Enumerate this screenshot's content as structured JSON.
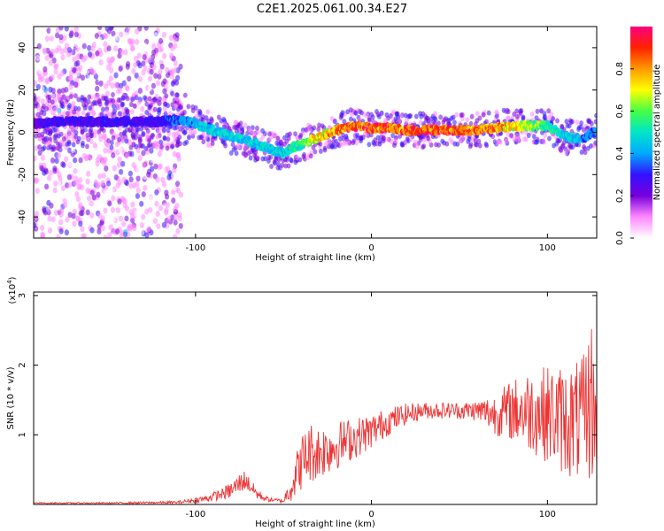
{
  "title": "C2E1.2025.061.00.34.E27",
  "chart_data": [
    {
      "type": "heatmap",
      "xlabel": "Height of straight line (km)",
      "ylabel": "Frequency (Hz)",
      "xlim": [
        -192,
        128
      ],
      "ylim": [
        -50,
        50
      ],
      "x_ticks": [
        -100,
        0,
        100
      ],
      "y_ticks": [
        -40,
        -20,
        0,
        20,
        40
      ],
      "colorbar": {
        "label": "Normalized spectral amplitude",
        "range": [
          0,
          1
        ],
        "ticks": [
          "0.0",
          "0.2",
          "0.4",
          "0.6",
          "0.8"
        ],
        "ramp": [
          "#ffffff",
          "#ff88ff",
          "#7700dd",
          "#3311ff",
          "#00aaff",
          "#00e5c8",
          "#44ff44",
          "#ffff00",
          "#ff9900",
          "#ff2200",
          "#ff0080"
        ]
      },
      "ridge": {
        "x": [
          -192,
          -180,
          -160,
          -140,
          -120,
          -110,
          -100,
          -90,
          -80,
          -70,
          -60,
          -55,
          -50,
          -45,
          -40,
          -35,
          -30,
          -20,
          -10,
          0,
          10,
          20,
          40,
          60,
          70,
          80,
          90,
          100,
          110,
          120,
          128
        ],
        "freq": [
          4,
          5,
          5,
          5,
          5,
          6,
          4,
          1,
          -2,
          -4,
          -7,
          -9,
          -10,
          -7,
          -6,
          -4,
          -2,
          1,
          3,
          2,
          2,
          1,
          1,
          1,
          2,
          3,
          3,
          3,
          -2,
          -3,
          1
        ],
        "amplitude": [
          0.25,
          0.3,
          0.3,
          0.3,
          0.3,
          0.4,
          0.45,
          0.5,
          0.5,
          0.5,
          0.5,
          0.5,
          0.5,
          0.55,
          0.6,
          0.7,
          0.8,
          0.9,
          0.95,
          0.95,
          0.95,
          0.95,
          0.95,
          0.95,
          0.9,
          0.8,
          0.7,
          0.6,
          0.5,
          0.45,
          0.4
        ]
      }
    },
    {
      "type": "line",
      "xlabel": "Height of straight line (km)",
      "ylabel": "SNR (10 * v/v)",
      "y_multiplier": "(x10^4)",
      "y_multiplier_base": "(x10",
      "y_multiplier_exp": "4",
      "y_multiplier_close": ")",
      "xlim": [
        -192,
        128
      ],
      "ylim": [
        0,
        3.05
      ],
      "x_ticks": [
        -100,
        0,
        100
      ],
      "y_ticks": [
        1,
        2,
        3
      ],
      "series": [
        {
          "color": "#ee3333",
          "x": [
            -192,
            -150,
            -110,
            -95,
            -85,
            -80,
            -75,
            -72,
            -70,
            -65,
            -60,
            -55,
            -50,
            -45,
            -40,
            -35,
            -30,
            -20,
            -10,
            0,
            10,
            20,
            30,
            40,
            50,
            60,
            70,
            80,
            90,
            100,
            110,
            120,
            125,
            128
          ],
          "value": [
            0.02,
            0.02,
            0.03,
            0.08,
            0.15,
            0.2,
            0.3,
            0.35,
            0.3,
            0.15,
            0.08,
            0.06,
            0.05,
            0.3,
            0.6,
            0.75,
            0.75,
            0.85,
            0.95,
            1.05,
            1.2,
            1.3,
            1.35,
            1.35,
            1.35,
            1.35,
            1.3,
            1.35,
            1.35,
            1.3,
            1.2,
            1.2,
            1.5,
            1.1
          ],
          "spread": [
            0.01,
            0.01,
            0.02,
            0.05,
            0.08,
            0.12,
            0.15,
            0.15,
            0.12,
            0.08,
            0.04,
            0.03,
            0.03,
            0.25,
            0.4,
            0.45,
            0.4,
            0.35,
            0.3,
            0.25,
            0.2,
            0.15,
            0.12,
            0.12,
            0.12,
            0.15,
            0.3,
            0.45,
            0.6,
            0.7,
            0.8,
            0.9,
            1.2,
            0.6
          ]
        }
      ]
    }
  ]
}
